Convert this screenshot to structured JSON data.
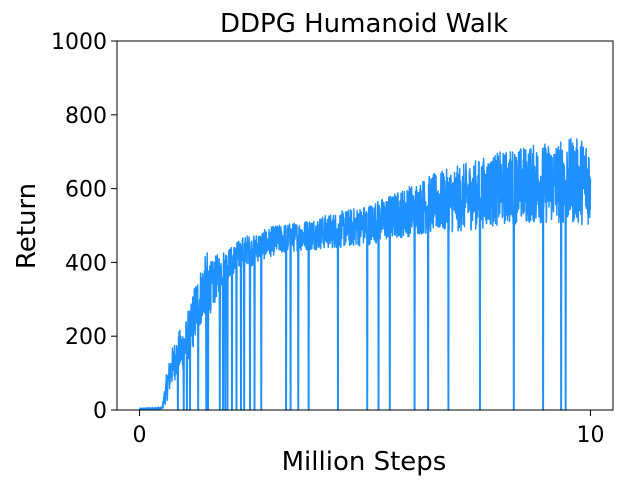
{
  "chart_data": {
    "type": "line",
    "title": "DDPG Humanoid Walk",
    "xlabel": "Million Steps",
    "ylabel": "Return",
    "xlim": [
      -0.5,
      10.5
    ],
    "ylim": [
      0,
      1000
    ],
    "xticks": [
      0,
      10
    ],
    "yticks": [
      0,
      200,
      400,
      600,
      800,
      1000
    ],
    "grid": false,
    "series": [
      {
        "color": "#1E90FF",
        "trend": {
          "x": [
            0,
            0.5,
            0.6,
            0.7,
            0.8,
            0.9,
            1.0,
            1.1,
            1.2,
            1.3,
            1.4,
            1.5,
            1.6,
            1.7,
            1.8,
            1.9,
            2.0,
            2.1,
            2.2,
            2.3,
            2.4,
            2.5,
            2.6,
            2.8,
            3.0,
            3.5,
            4.0,
            4.5,
            5.0,
            5.5,
            6.0,
            6.5,
            7.0,
            7.5,
            8.0,
            8.5,
            9.0,
            9.5,
            10.0
          ],
          "center": [
            3,
            5,
            60,
            110,
            140,
            160,
            170,
            210,
            250,
            290,
            320,
            350,
            330,
            360,
            380,
            390,
            400,
            410,
            420,
            430,
            435,
            430,
            440,
            450,
            460,
            470,
            480,
            490,
            500,
            520,
            540,
            560,
            570,
            585,
            600,
            610,
            615,
            620,
            620
          ],
          "spread": [
            2,
            3,
            40,
            50,
            55,
            60,
            60,
            70,
            80,
            80,
            80,
            80,
            70,
            60,
            50,
            45,
            40,
            40,
            40,
            40,
            40,
            40,
            40,
            40,
            40,
            40,
            45,
            50,
            55,
            60,
            70,
            80,
            90,
            95,
            100,
            105,
            110,
            115,
            120
          ]
        },
        "dips_to_zero_at": [
          0.85,
          0.98,
          1.05,
          1.12,
          1.3,
          1.48,
          1.52,
          1.78,
          1.85,
          1.9,
          1.95,
          2.05,
          2.15,
          2.25,
          2.32,
          2.45,
          2.55,
          2.7,
          3.25,
          3.35,
          3.52,
          3.75,
          4.4,
          5.05,
          5.3,
          5.55,
          6.1,
          6.4,
          6.85,
          7.55,
          8.3,
          8.95,
          9.35,
          9.45
        ]
      }
    ]
  }
}
